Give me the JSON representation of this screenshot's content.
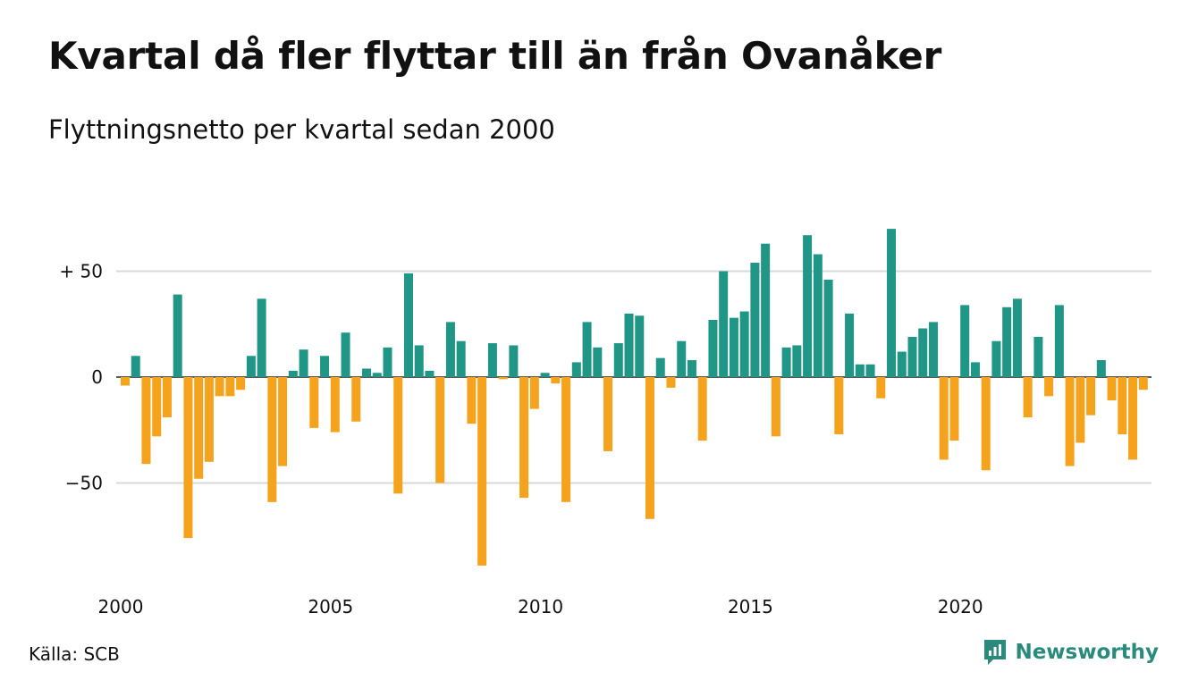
{
  "title": "Kvartal då fler flyttar till än från Ovanåker",
  "subtitle": "Flyttningsnetto per kvartal sedan 2000",
  "source": "Källa: SCB",
  "brand": {
    "name": "Newsworthy",
    "icon": "newsworthy-logo-icon",
    "color": "#2a8a7c"
  },
  "colors": {
    "positive": "#1f9686",
    "negative": "#f5a21c",
    "grid": "#d9d9d9"
  },
  "chart_data": {
    "type": "bar",
    "title": "Kvartal då fler flyttar till än från Ovanåker",
    "subtitle": "Flyttningsnetto per kvartal sedan 2000",
    "xlabel": "",
    "ylabel": "",
    "ylim": [
      -92,
      75
    ],
    "y_ticks": [
      {
        "value": 50,
        "label": "+ 50"
      },
      {
        "value": 0,
        "label": "0"
      },
      {
        "value": -50,
        "label": "−50"
      }
    ],
    "x_tick_labels": [
      "2000",
      "2005",
      "2010",
      "2015",
      "2020"
    ],
    "grid": true,
    "start": "2000 Q1",
    "values": [
      -4,
      10,
      -41,
      -28,
      -19,
      39,
      -76,
      -48,
      -40,
      -9,
      -9,
      -6,
      10,
      37,
      -59,
      -42,
      3,
      13,
      -24,
      10,
      -26,
      21,
      -21,
      4,
      2,
      14,
      -55,
      49,
      15,
      3,
      -50,
      26,
      17,
      -22,
      -89,
      16,
      -1,
      15,
      -57,
      -15,
      2,
      -3,
      -59,
      7,
      26,
      14,
      -35,
      16,
      30,
      29,
      -67,
      9,
      -5,
      17,
      8,
      -30,
      27,
      50,
      28,
      31,
      54,
      63,
      -28,
      14,
      15,
      67,
      58,
      46,
      -27,
      30,
      6,
      6,
      -10,
      70,
      12,
      19,
      23,
      26,
      -39,
      -30,
      34,
      7,
      -44,
      17,
      33,
      37,
      -19,
      19,
      -9,
      34,
      -42,
      -31,
      -18,
      8,
      -11,
      -27,
      -39,
      -6
    ]
  }
}
